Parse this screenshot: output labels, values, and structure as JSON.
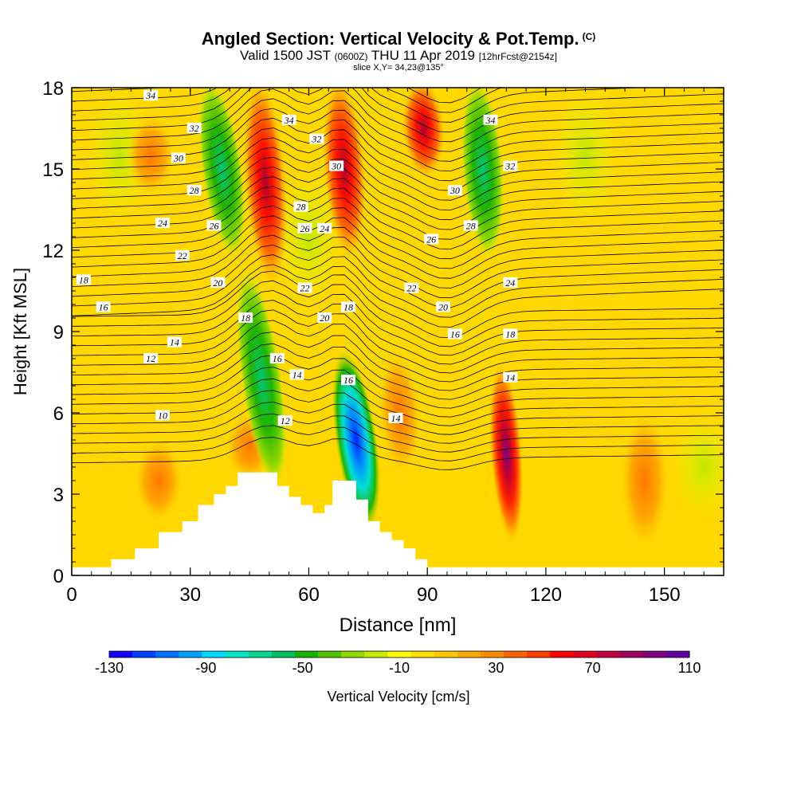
{
  "header": {
    "title": "Angled Section: Vertical Velocity & Pot.Temp.",
    "title_unit": "(C)",
    "valid_main": "Valid 1500 JST",
    "valid_utc": "(0600Z)",
    "valid_date": "THU 11 Apr 2019",
    "valid_fcst": "[12hrFcst@2154z]",
    "slice": "slice X,Y= 34,23@135°"
  },
  "axes": {
    "xlabel": "Distance [nm]",
    "ylabel": "Height [Kft MSL]",
    "xlim": [
      0,
      165
    ],
    "ylim": [
      0,
      18
    ],
    "xticks": [
      "0",
      "30",
      "60",
      "90",
      "120",
      "150"
    ],
    "xtick_values": [
      0,
      30,
      60,
      90,
      120,
      150
    ],
    "yticks": [
      "0",
      "3",
      "6",
      "9",
      "12",
      "15",
      "18"
    ],
    "ytick_values": [
      0,
      3,
      6,
      9,
      12,
      15,
      18
    ]
  },
  "colorbar": {
    "label": "Vertical Velocity [cm/s]",
    "tick_labels": [
      "-130",
      "-90",
      "-50",
      "-10",
      "30",
      "70",
      "110"
    ],
    "colors": [
      "#1400ff",
      "#0040ff",
      "#0070ff",
      "#00a0ff",
      "#00d8ff",
      "#00e6c8",
      "#00d890",
      "#00c060",
      "#14b400",
      "#50c400",
      "#90d800",
      "#c8ec00",
      "#ffff00",
      "#ffe000",
      "#ffc800",
      "#ffaa00",
      "#ff8c00",
      "#ff6400",
      "#ff3c00",
      "#ff0000",
      "#e00020",
      "#c00040",
      "#a00060",
      "#800080",
      "#6000a0"
    ]
  },
  "chart_data": {
    "type": "heatmap",
    "variable": "Vertical Velocity [cm/s] with Pot.Temp. (C) contours",
    "xlim": [
      0,
      165
    ],
    "ylim": [
      0,
      18
    ],
    "terrain_top_kft": [
      [
        0,
        0.3
      ],
      [
        10,
        0.3
      ],
      [
        10,
        0.6
      ],
      [
        16,
        0.6
      ],
      [
        16,
        1.0
      ],
      [
        22,
        1.0
      ],
      [
        22,
        1.6
      ],
      [
        28,
        1.6
      ],
      [
        28,
        2.0
      ],
      [
        32,
        2.0
      ],
      [
        32,
        2.6
      ],
      [
        36,
        2.6
      ],
      [
        36,
        3.0
      ],
      [
        39,
        3.0
      ],
      [
        39,
        3.3
      ],
      [
        42,
        3.3
      ],
      [
        42,
        3.8
      ],
      [
        48,
        3.8
      ],
      [
        48,
        3.8
      ],
      [
        52,
        3.8
      ],
      [
        52,
        3.3
      ],
      [
        55,
        3.3
      ],
      [
        55,
        2.9
      ],
      [
        58,
        2.9
      ],
      [
        58,
        2.6
      ],
      [
        61,
        2.6
      ],
      [
        61,
        2.3
      ],
      [
        64,
        2.3
      ],
      [
        64,
        2.6
      ],
      [
        66,
        2.6
      ],
      [
        66,
        3.5
      ],
      [
        72,
        3.5
      ],
      [
        72,
        2.8
      ],
      [
        75,
        2.8
      ],
      [
        75,
        2.0
      ],
      [
        78,
        2.0
      ],
      [
        78,
        1.6
      ],
      [
        81,
        1.6
      ],
      [
        81,
        1.3
      ],
      [
        84,
        1.3
      ],
      [
        84,
        1.0
      ],
      [
        87,
        1.0
      ],
      [
        87,
        0.6
      ],
      [
        90,
        0.6
      ],
      [
        90,
        0.3
      ],
      [
        165,
        0.3
      ]
    ],
    "vv_features": [
      {
        "kind": "updraft",
        "x": 49,
        "y_from": 11,
        "y_to": 18,
        "max_cm_s": 90
      },
      {
        "kind": "downdraft",
        "x": 38,
        "y_from": 12,
        "y_to": 18,
        "min_cm_s": -50
      },
      {
        "kind": "downdraft",
        "x": 48,
        "y_from": 3.5,
        "y_to": 11,
        "min_cm_s": -60
      },
      {
        "kind": "updraft",
        "x": 69,
        "y_from": 12,
        "y_to": 18,
        "max_cm_s": 90
      },
      {
        "kind": "downdraft",
        "x": 72,
        "y_from": 2,
        "y_to": 8,
        "min_cm_s": -130
      },
      {
        "kind": "updraft",
        "x": 83,
        "y_from": 4,
        "y_to": 8,
        "max_cm_s": 40
      },
      {
        "kind": "updraft",
        "x": 89,
        "y_from": 15,
        "y_to": 18,
        "max_cm_s": 90
      },
      {
        "kind": "downdraft",
        "x": 104,
        "y_from": 12,
        "y_to": 18,
        "min_cm_s": -60
      },
      {
        "kind": "updraft",
        "x": 110,
        "y_from": 1.5,
        "y_to": 7.5,
        "max_cm_s": 110
      }
    ],
    "contour_labels": [
      {
        "text": "34",
        "x": 20,
        "y": 17.7
      },
      {
        "text": "32",
        "x": 31,
        "y": 16.5
      },
      {
        "text": "30",
        "x": 27,
        "y": 15.4
      },
      {
        "text": "28",
        "x": 31,
        "y": 14.2
      },
      {
        "text": "26",
        "x": 36,
        "y": 12.9
      },
      {
        "text": "24",
        "x": 23,
        "y": 13.0
      },
      {
        "text": "22",
        "x": 28,
        "y": 11.8
      },
      {
        "text": "20",
        "x": 37,
        "y": 10.8
      },
      {
        "text": "18",
        "x": 3,
        "y": 10.9
      },
      {
        "text": "16",
        "x": 8,
        "y": 9.9
      },
      {
        "text": "18",
        "x": 44,
        "y": 9.5
      },
      {
        "text": "14",
        "x": 26,
        "y": 8.6
      },
      {
        "text": "12",
        "x": 20,
        "y": 8.0
      },
      {
        "text": "16",
        "x": 52,
        "y": 8.0
      },
      {
        "text": "10",
        "x": 23,
        "y": 5.9
      },
      {
        "text": "14",
        "x": 57,
        "y": 7.4
      },
      {
        "text": "12",
        "x": 54,
        "y": 5.7
      },
      {
        "text": "34",
        "x": 55,
        "y": 16.8
      },
      {
        "text": "32",
        "x": 62,
        "y": 16.1
      },
      {
        "text": "30",
        "x": 67,
        "y": 15.1
      },
      {
        "text": "28",
        "x": 58,
        "y": 13.6
      },
      {
        "text": "26",
        "x": 59,
        "y": 12.8
      },
      {
        "text": "24",
        "x": 64,
        "y": 12.8
      },
      {
        "text": "22",
        "x": 59,
        "y": 10.6
      },
      {
        "text": "20",
        "x": 64,
        "y": 9.5
      },
      {
        "text": "18",
        "x": 70,
        "y": 9.9
      },
      {
        "text": "16",
        "x": 70,
        "y": 7.2
      },
      {
        "text": "14",
        "x": 82,
        "y": 5.8
      },
      {
        "text": "34",
        "x": 106,
        "y": 16.8
      },
      {
        "text": "32",
        "x": 111,
        "y": 15.1
      },
      {
        "text": "30",
        "x": 97,
        "y": 14.2
      },
      {
        "text": "28",
        "x": 101,
        "y": 12.9
      },
      {
        "text": "26",
        "x": 91,
        "y": 12.4
      },
      {
        "text": "24",
        "x": 111,
        "y": 10.8
      },
      {
        "text": "22",
        "x": 86,
        "y": 10.6
      },
      {
        "text": "20",
        "x": 94,
        "y": 9.9
      },
      {
        "text": "16",
        "x": 97,
        "y": 8.9
      },
      {
        "text": "18",
        "x": 111,
        "y": 8.9
      },
      {
        "text": "14",
        "x": 111,
        "y": 7.3
      }
    ]
  }
}
